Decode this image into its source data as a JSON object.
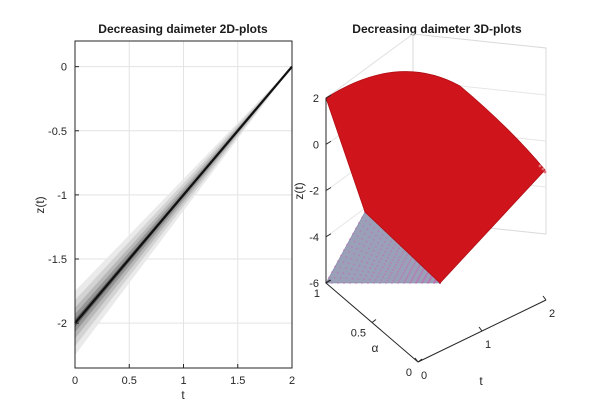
{
  "chart_data": [
    {
      "type": "area",
      "title": "Decreasing daimeter 2D-plots",
      "xlabel": "t",
      "ylabel": "z(t)",
      "xlim": [
        0,
        2
      ],
      "ylim": [
        -2.35,
        0.2
      ],
      "xticks": [
        "0",
        "0.5",
        "1",
        "1.5",
        "2"
      ],
      "yticks": [
        "0",
        "-0.5",
        "-1",
        "-1.5",
        "-2"
      ],
      "grid": true,
      "centerline": {
        "x": [
          0,
          2
        ],
        "y": [
          -2,
          0
        ]
      },
      "band_halfwidths_at_t0": [
        0.25,
        0.18,
        0.12,
        0.07,
        0.03
      ],
      "band_colors": [
        "#e6e6e6",
        "#cfcfcf",
        "#b3b3b3",
        "#8f8f8f",
        "#5c5c5c"
      ],
      "line_color": "#111111"
    },
    {
      "type": "surface",
      "title": "Decreasing daimeter 3D-plots",
      "xlabel": "t",
      "ylabel": "α",
      "zlabel": "z(t)",
      "xlim": [
        0,
        2
      ],
      "ylim": [
        0,
        1
      ],
      "zlim": [
        -6,
        2
      ],
      "xticks": [
        "0",
        "1",
        "2"
      ],
      "yticks": [
        "0",
        "0.5",
        "1"
      ],
      "zticks": [
        "2",
        "0",
        "-2",
        "-4",
        "-6"
      ],
      "surface_color": "#d0141c",
      "underside_color": "#9aa0b8",
      "grid": true
    }
  ]
}
